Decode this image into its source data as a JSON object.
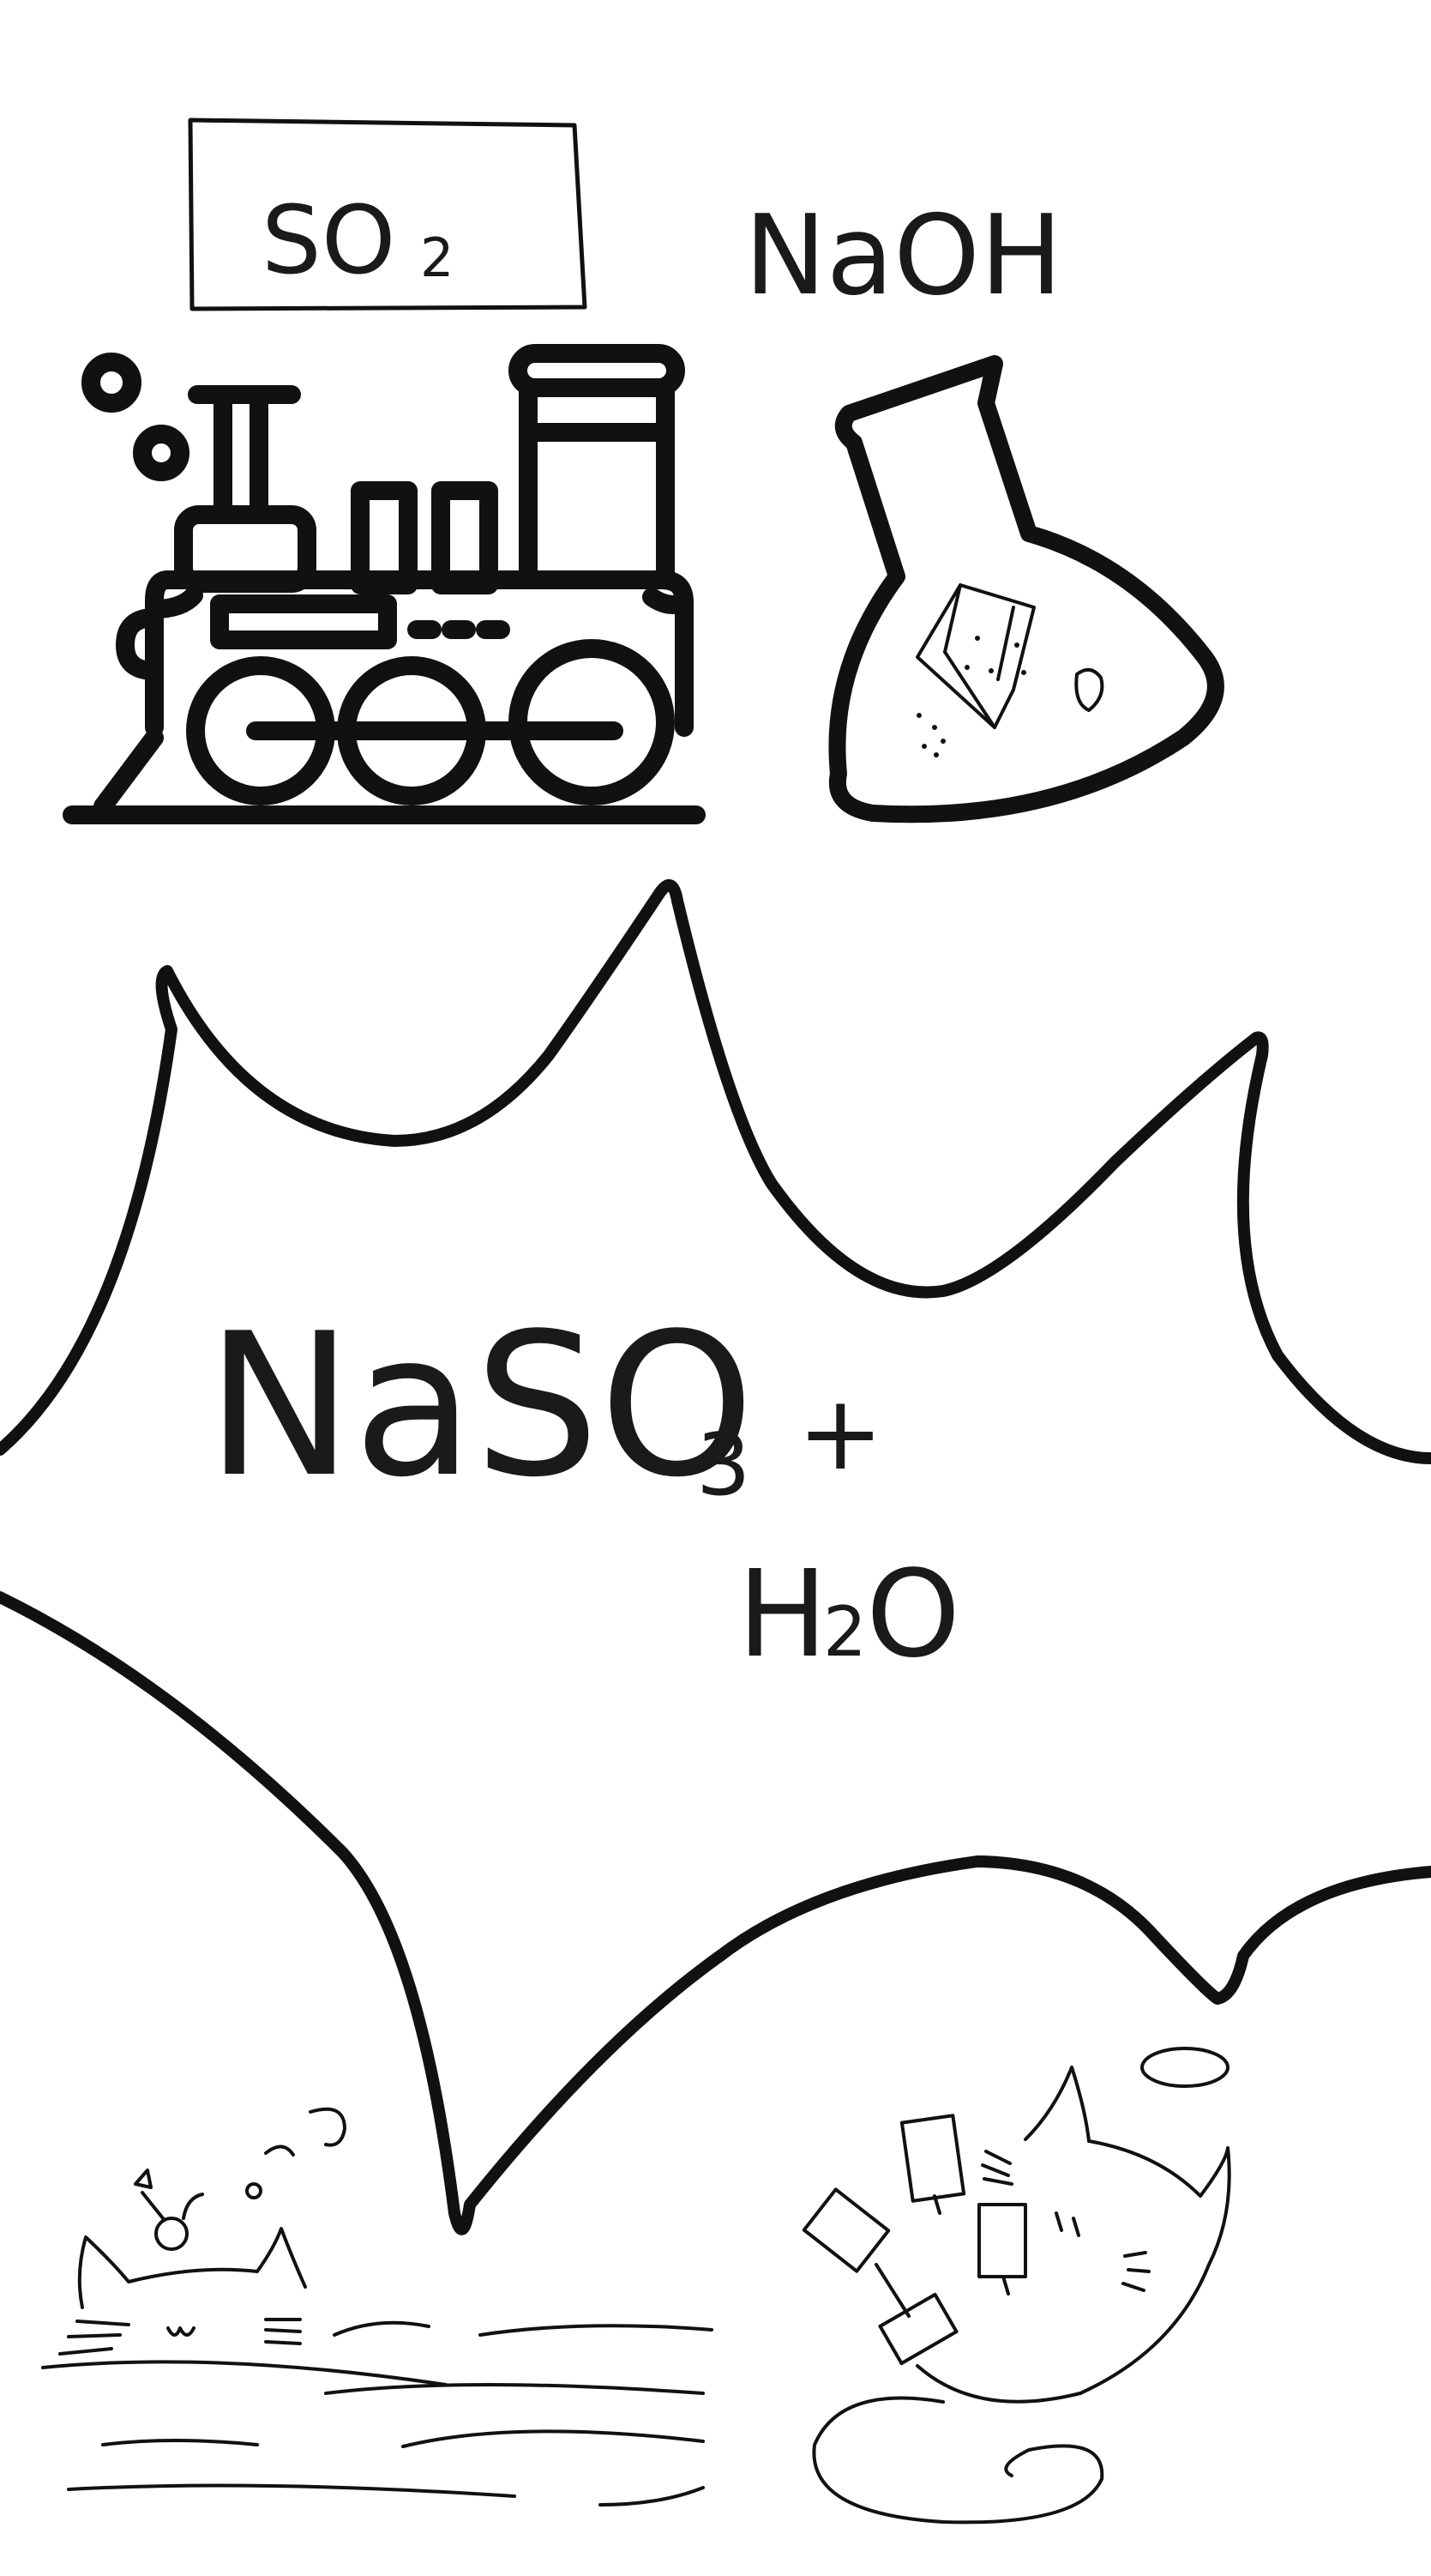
{
  "colors": {
    "background": "#ffffff",
    "ink": "#111111",
    "flask_ink": "#333333"
  },
  "labels": {
    "so2_label": "SO",
    "so2_sub": "2",
    "naoh_label": "NaOH",
    "product_main": "NaSO",
    "product_sub": "3",
    "plus_sign": "+",
    "water_h": "H",
    "water_sub": "2",
    "water_o": "O"
  },
  "icons": {
    "train": "steam-locomotive-icon",
    "flask": "chemistry-flask-icon",
    "cloud": "explosion-cloud",
    "cat_left": "sleeping-cat-in-water-sketch",
    "cat_right": "cat-with-dumbbells-sketch"
  }
}
